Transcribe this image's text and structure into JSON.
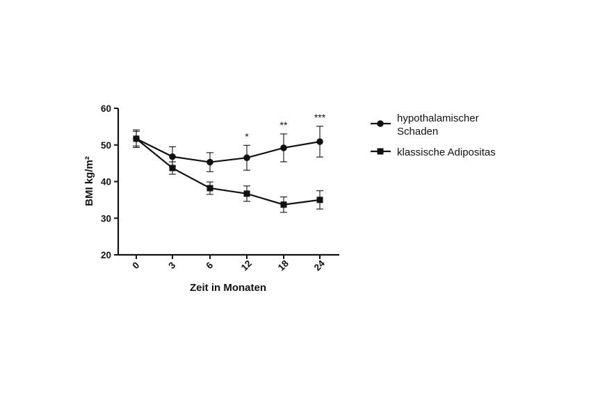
{
  "chart_data": {
    "type": "line",
    "xlabel": "Zeit in Monaten",
    "ylabel": "BMI kg/m²",
    "categories": [
      "0",
      "3",
      "6",
      "12",
      "18",
      "24"
    ],
    "ylim": [
      20,
      60
    ],
    "yticks": [
      20,
      30,
      40,
      50,
      60
    ],
    "grid": false,
    "legend_position": "right",
    "series": [
      {
        "name_lines": [
          "hypothalamischer",
          "Schaden"
        ],
        "marker": "circle",
        "values": [
          51.7,
          46.8,
          45.3,
          46.5,
          49.2,
          50.9
        ],
        "error": [
          2.4,
          2.7,
          2.6,
          3.4,
          3.8,
          4.2
        ]
      },
      {
        "name_lines": [
          "klassische Adipositas"
        ],
        "marker": "square",
        "values": [
          51.7,
          43.7,
          38.2,
          36.7,
          33.7,
          35.0
        ],
        "error": [
          2.0,
          1.7,
          1.7,
          2.1,
          2.1,
          2.5
        ]
      }
    ],
    "significance": [
      "",
      "",
      "",
      "*",
      "**",
      "***"
    ]
  }
}
